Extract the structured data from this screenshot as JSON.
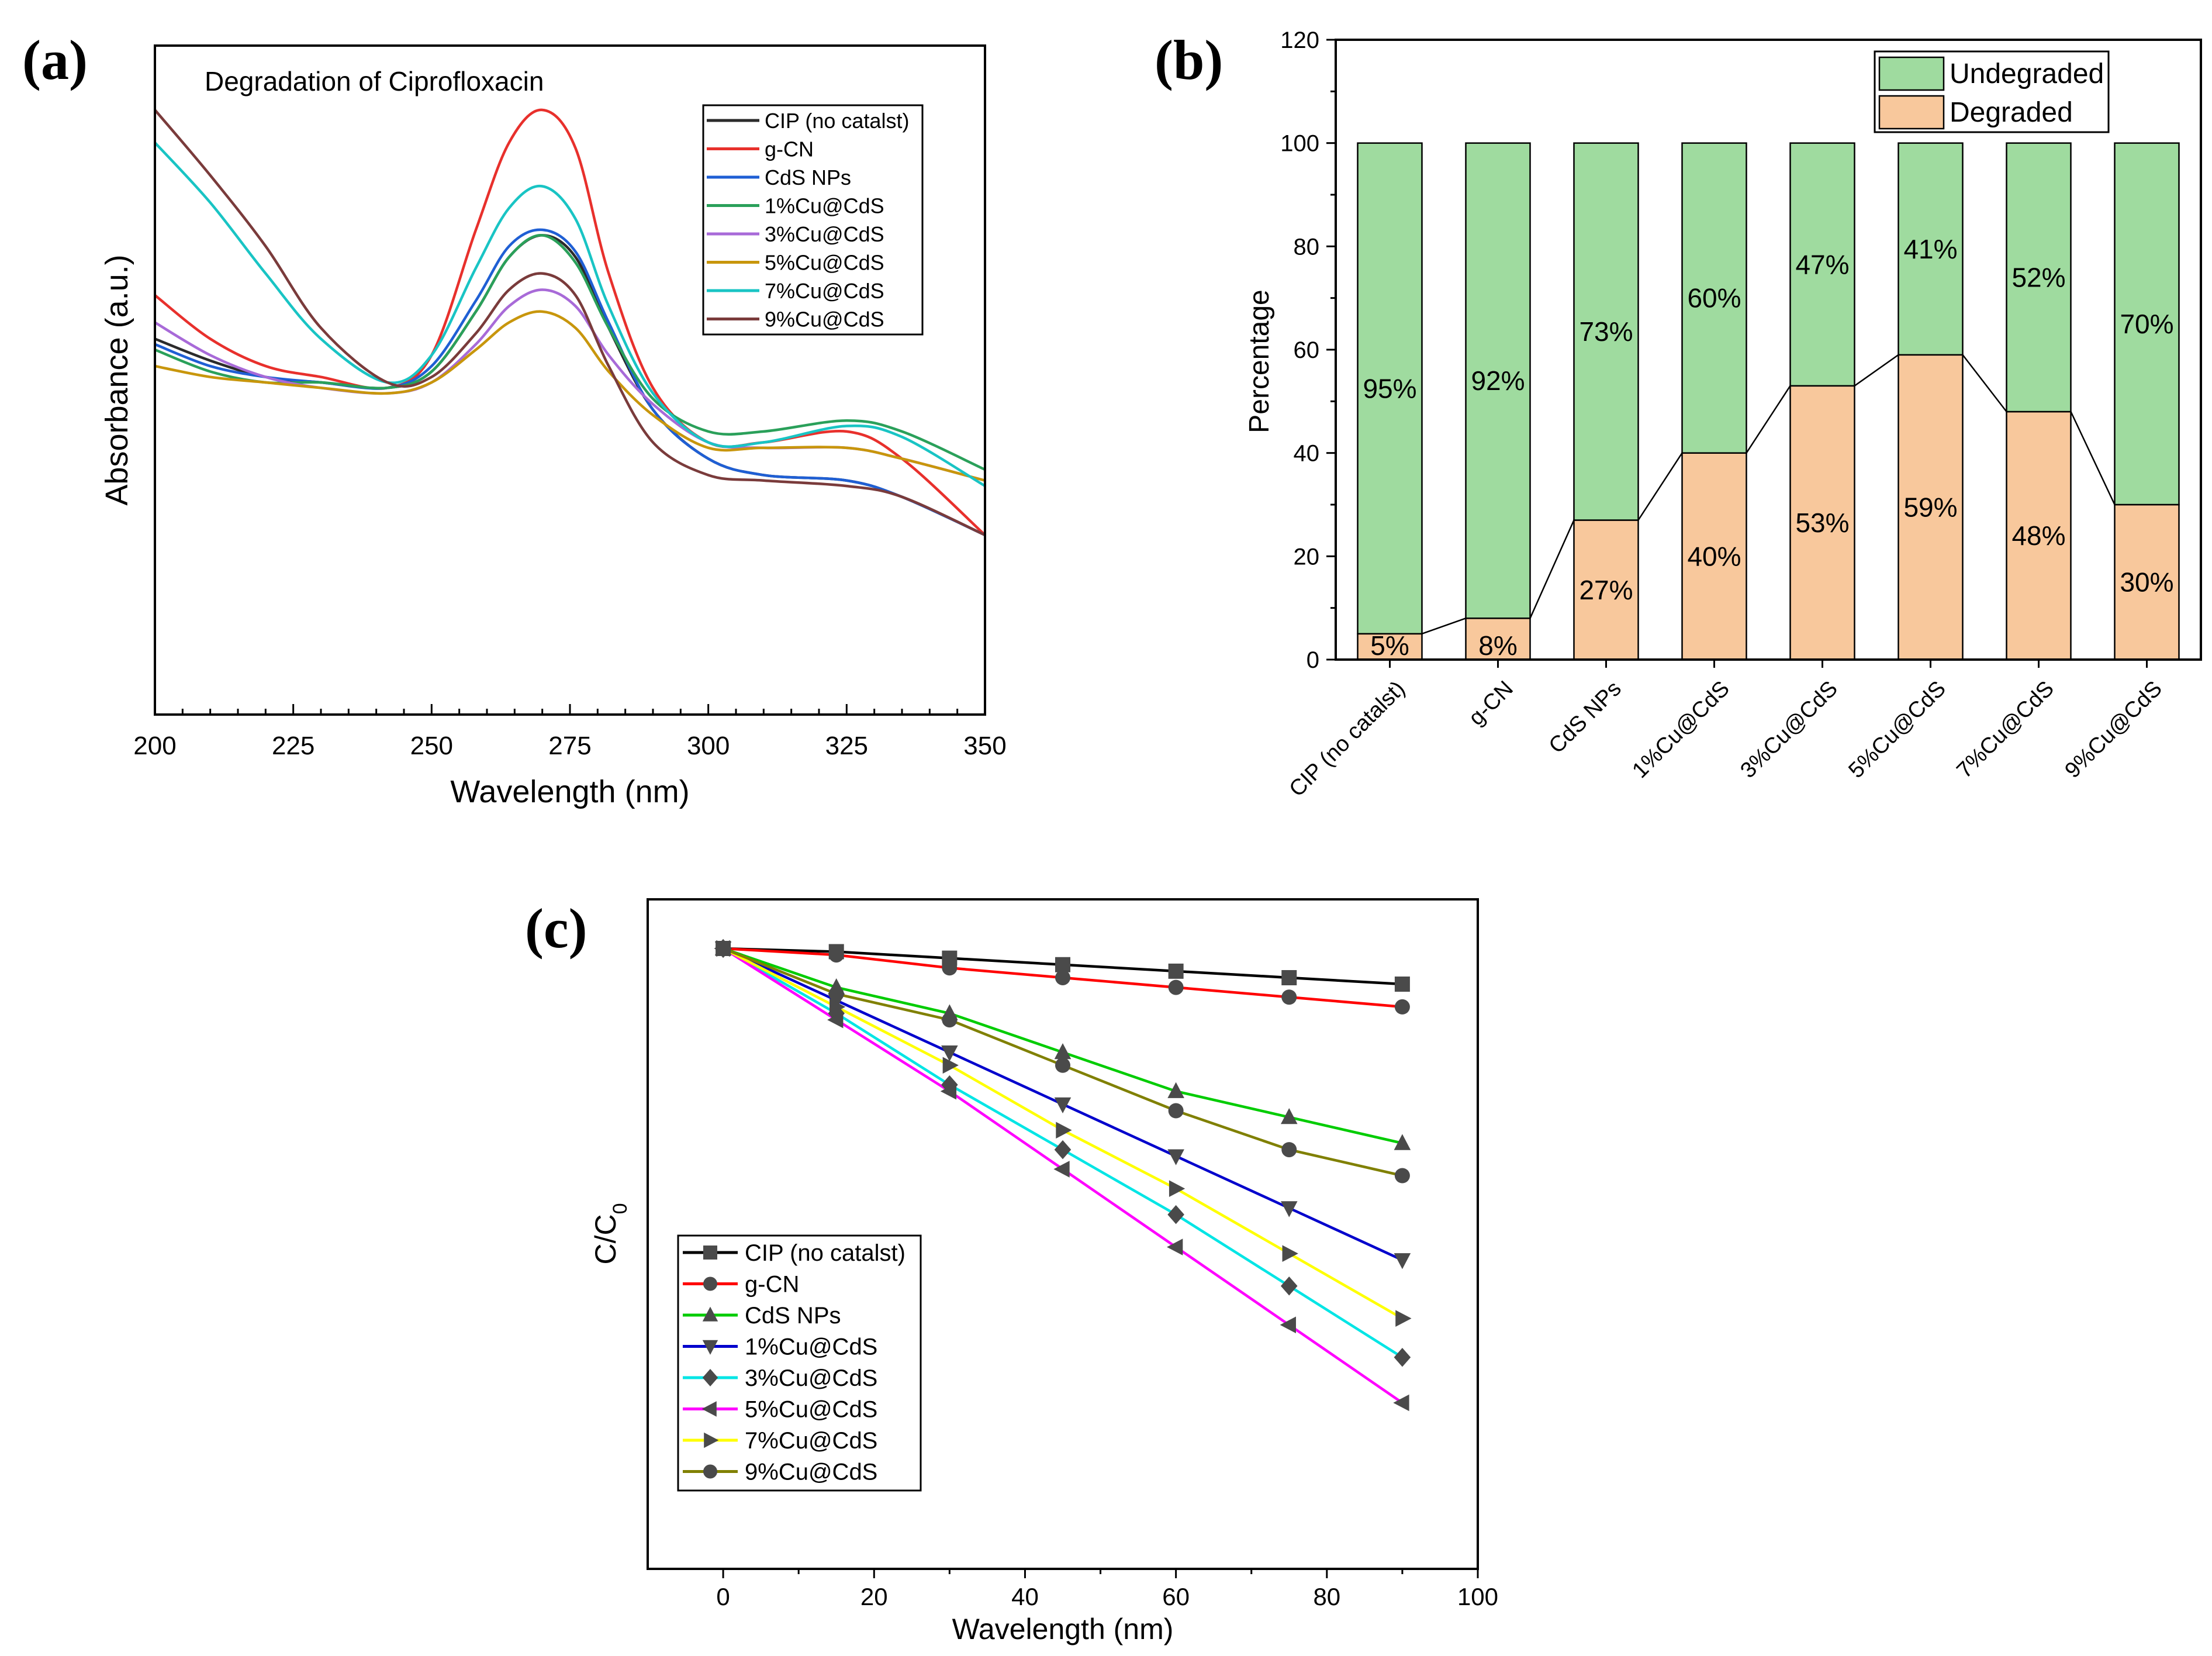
{
  "panels": {
    "a": {
      "label": "(a)"
    },
    "b": {
      "label": "(b)"
    },
    "c": {
      "label": "(c)"
    }
  },
  "chart_data": [
    {
      "id": "a",
      "type": "line",
      "title": "Degradation of Ciprofloxacin",
      "xlabel": "Wavelength (nm)",
      "ylabel": "Absorbance (a.u.)",
      "xlim": [
        200,
        350
      ],
      "ylim": [
        0,
        1.0
      ],
      "xticks": [
        200,
        225,
        250,
        275,
        300,
        325,
        350
      ],
      "y_tick_labels_shown": false,
      "legend_position": "top-right",
      "x": [
        200,
        210,
        220,
        230,
        242,
        250,
        258,
        264,
        270,
        276,
        282,
        290,
        300,
        310,
        325,
        335,
        350
      ],
      "series": [
        {
          "name": "CIP (no catalst)",
          "color": "#2b2b2b",
          "values": [
            0.58,
            0.54,
            0.51,
            0.5,
            0.49,
            0.52,
            0.63,
            0.73,
            0.77,
            0.73,
            0.6,
            0.45,
            0.36,
            0.33,
            0.32,
            0.29,
            0.22
          ]
        },
        {
          "name": "g-CN",
          "color": "#e8302c",
          "values": [
            0.66,
            0.58,
            0.53,
            0.51,
            0.49,
            0.55,
            0.78,
            0.94,
            1.0,
            0.93,
            0.7,
            0.49,
            0.39,
            0.39,
            0.41,
            0.36,
            0.22
          ]
        },
        {
          "name": "CdS NPs",
          "color": "#1f5fd4",
          "values": [
            0.57,
            0.53,
            0.51,
            0.5,
            0.49,
            0.53,
            0.65,
            0.75,
            0.78,
            0.74,
            0.61,
            0.45,
            0.36,
            0.33,
            0.32,
            0.29,
            0.22
          ]
        },
        {
          "name": "1%Cu@CdS",
          "color": "#2aa05a",
          "values": [
            0.56,
            0.52,
            0.5,
            0.5,
            0.49,
            0.52,
            0.63,
            0.73,
            0.77,
            0.72,
            0.6,
            0.47,
            0.41,
            0.41,
            0.43,
            0.41,
            0.34
          ]
        },
        {
          "name": "3%Cu@CdS",
          "color": "#a86ad8",
          "values": [
            0.61,
            0.55,
            0.51,
            0.49,
            0.48,
            0.5,
            0.57,
            0.64,
            0.67,
            0.64,
            0.55,
            0.46,
            0.39,
            0.38,
            0.38,
            0.36,
            0.32
          ]
        },
        {
          "name": "5%Cu@CdS",
          "color": "#c8960c",
          "values": [
            0.53,
            0.51,
            0.5,
            0.49,
            0.48,
            0.5,
            0.56,
            0.61,
            0.63,
            0.6,
            0.52,
            0.44,
            0.38,
            0.38,
            0.38,
            0.36,
            0.32
          ]
        },
        {
          "name": "7%Cu@CdS",
          "color": "#19c4c4",
          "values": [
            0.94,
            0.83,
            0.7,
            0.58,
            0.5,
            0.55,
            0.71,
            0.82,
            0.86,
            0.8,
            0.64,
            0.48,
            0.39,
            0.39,
            0.42,
            0.4,
            0.31
          ]
        },
        {
          "name": "9%Cu@CdS",
          "color": "#7a3b3b",
          "values": [
            1.0,
            0.88,
            0.75,
            0.6,
            0.5,
            0.51,
            0.59,
            0.67,
            0.7,
            0.66,
            0.53,
            0.39,
            0.33,
            0.32,
            0.31,
            0.29,
            0.22
          ]
        }
      ]
    },
    {
      "id": "b",
      "type": "bar",
      "stacked": true,
      "ylabel": "Percentage",
      "ylim": [
        0,
        120
      ],
      "yticks": [
        0,
        20,
        40,
        60,
        80,
        100,
        120
      ],
      "legend_position": "top-right",
      "categories": [
        "CIP (no catalst)",
        "g-CN",
        "CdS NPs",
        "1%Cu@CdS",
        "3%Cu@CdS",
        "5%Cu@CdS",
        "7%Cu@CdS",
        "9%Cu@CdS"
      ],
      "series": [
        {
          "name": "Degraded",
          "color": "#f8c89c",
          "values": [
            5,
            8,
            27,
            40,
            53,
            59,
            48,
            30
          ],
          "labels": [
            "5%",
            "8%",
            "27%",
            "40%",
            "53%",
            "59%",
            "48%",
            "30%"
          ]
        },
        {
          "name": "Undegraded",
          "color": "#9fdb9f",
          "values": [
            95,
            92,
            73,
            60,
            47,
            41,
            52,
            70
          ],
          "labels": [
            "95%",
            "92%",
            "73%",
            "60%",
            "47%",
            "41%",
            "52%",
            "70%"
          ]
        }
      ],
      "legend_order": [
        "Undegraded",
        "Degraded"
      ]
    },
    {
      "id": "c",
      "type": "line",
      "xlabel": "Wavelength (nm)",
      "ylabel": "C/C",
      "ylabel_subscript": "0",
      "xlim": [
        -10,
        100
      ],
      "ylim": [
        0.0,
        1.0
      ],
      "xticks": [
        0,
        20,
        40,
        60,
        80,
        100
      ],
      "y_tick_labels_shown": false,
      "legend_position": "bottom-left",
      "x": [
        0,
        15,
        30,
        45,
        60,
        75,
        90
      ],
      "series": [
        {
          "name": "CIP (no catalst)",
          "color": "#000000",
          "marker": "square",
          "values": [
            1.0,
            0.995,
            0.985,
            0.975,
            0.965,
            0.955,
            0.945
          ]
        },
        {
          "name": "g-CN",
          "color": "#ff0000",
          "marker": "circle",
          "values": [
            1.0,
            0.99,
            0.97,
            0.955,
            0.94,
            0.925,
            0.91
          ]
        },
        {
          "name": "CdS NPs",
          "color": "#00cc00",
          "marker": "triangle-up",
          "values": [
            1.0,
            0.94,
            0.9,
            0.84,
            0.78,
            0.74,
            0.7
          ]
        },
        {
          "name": "1%Cu@CdS",
          "color": "#0000cc",
          "marker": "triangle-down",
          "values": [
            1.0,
            0.92,
            0.84,
            0.76,
            0.68,
            0.6,
            0.52
          ]
        },
        {
          "name": "3%Cu@CdS",
          "color": "#00e5e5",
          "marker": "diamond",
          "values": [
            1.0,
            0.9,
            0.79,
            0.69,
            0.59,
            0.48,
            0.37
          ]
        },
        {
          "name": "5%Cu@CdS",
          "color": "#ff00ff",
          "marker": "triangle-left",
          "values": [
            1.0,
            0.89,
            0.78,
            0.66,
            0.54,
            0.42,
            0.3
          ]
        },
        {
          "name": "7%Cu@CdS",
          "color": "#ffff00",
          "marker": "triangle-right",
          "values": [
            1.0,
            0.91,
            0.82,
            0.72,
            0.63,
            0.53,
            0.43
          ]
        },
        {
          "name": "9%Cu@CdS",
          "color": "#808000",
          "marker": "circle",
          "values": [
            1.0,
            0.93,
            0.89,
            0.82,
            0.75,
            0.69,
            0.65
          ]
        }
      ]
    }
  ]
}
